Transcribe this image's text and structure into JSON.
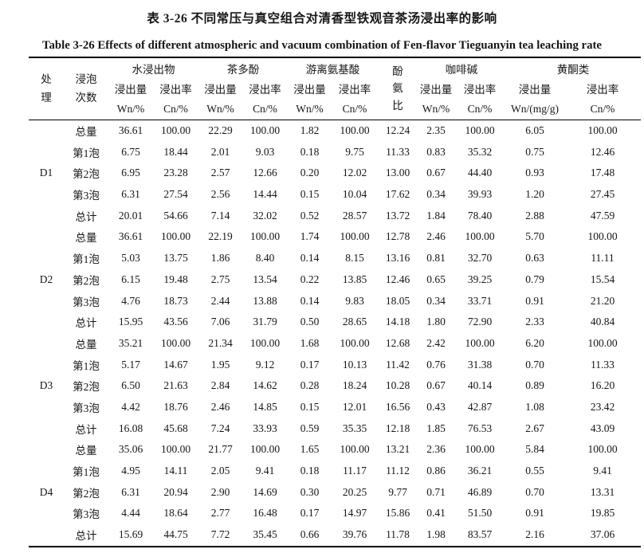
{
  "page": {
    "title_zh": "表 3-26 不同常压与真空组合对清香型铁观音茶汤浸出率的影响",
    "title_en": "Table 3-26 Effects of different atmospheric and vacuum combination of Fen-flavor Tieguanyin tea leaching rate"
  },
  "header": {
    "treatment": "处\n理",
    "steep_count": "浸泡\n次数",
    "phenol_amino_ratio": "酚\n氨\n比",
    "amount_label": "浸出量",
    "rate_label": "浸出率",
    "groups": [
      {
        "name": "水浸出物",
        "units": [
          "Wn/%",
          "Cn/%"
        ]
      },
      {
        "name": "茶多酚",
        "units": [
          "Wn/%",
          "Cn/%"
        ]
      },
      {
        "name": "游离氨基酸",
        "units": [
          "Wn/%",
          "Cn/%"
        ]
      },
      {
        "name": "咖啡碱",
        "units": [
          "Wn/%",
          "Cn/%"
        ]
      },
      {
        "name": "黄酮类",
        "units": [
          "Wn/(mg/g)",
          "Cn/%"
        ]
      }
    ]
  },
  "table": {
    "rows": [
      {
        "treatment": "",
        "label": "总量",
        "values": [
          "36.61",
          "100.00",
          "22.29",
          "100.00",
          "1.82",
          "100.00",
          "12.24",
          "2.35",
          "100.00",
          "6.05",
          "100.00"
        ]
      },
      {
        "treatment": "",
        "label": "第1泡",
        "values": [
          "6.75",
          "18.44",
          "2.01",
          "9.03",
          "0.18",
          "9.75",
          "11.33",
          "0.83",
          "35.32",
          "0.75",
          "12.46"
        ]
      },
      {
        "treatment": "D1",
        "label": "第2泡",
        "values": [
          "6.95",
          "23.28",
          "2.57",
          "12.66",
          "0.20",
          "12.02",
          "13.00",
          "0.67",
          "44.40",
          "0.93",
          "17.48"
        ]
      },
      {
        "treatment": "",
        "label": "第3泡",
        "values": [
          "6.31",
          "27.54",
          "2.56",
          "14.44",
          "0.15",
          "10.04",
          "17.62",
          "0.34",
          "39.93",
          "1.20",
          "27.45"
        ]
      },
      {
        "treatment": "",
        "label": "总计",
        "values": [
          "20.01",
          "54.66",
          "7.14",
          "32.02",
          "0.52",
          "28.57",
          "13.72",
          "1.84",
          "78.40",
          "2.88",
          "47.59"
        ]
      },
      {
        "treatment": "",
        "label": "总量",
        "values": [
          "36.61",
          "100.00",
          "22.19",
          "100.00",
          "1.74",
          "100.00",
          "12.78",
          "2.46",
          "100.00",
          "5.70",
          "100.00"
        ]
      },
      {
        "treatment": "",
        "label": "第1泡",
        "values": [
          "5.03",
          "13.75",
          "1.86",
          "8.40",
          "0.14",
          "8.15",
          "13.16",
          "0.81",
          "32.70",
          "0.63",
          "11.11"
        ]
      },
      {
        "treatment": "D2",
        "label": "第2泡",
        "values": [
          "6.15",
          "19.48",
          "2.75",
          "13.54",
          "0.22",
          "13.85",
          "12.46",
          "0.65",
          "39.25",
          "0.79",
          "15.54"
        ]
      },
      {
        "treatment": "",
        "label": "第3泡",
        "values": [
          "4.76",
          "18.73",
          "2.44",
          "13.88",
          "0.14",
          "9.83",
          "18.05",
          "0.34",
          "33.71",
          "0.91",
          "21.20"
        ]
      },
      {
        "treatment": "",
        "label": "总计",
        "values": [
          "15.95",
          "43.56",
          "7.06",
          "31.79",
          "0.50",
          "28.65",
          "14.18",
          "1.80",
          "72.90",
          "2.33",
          "40.84"
        ]
      },
      {
        "treatment": "",
        "label": "总量",
        "values": [
          "35.21",
          "100.00",
          "21.34",
          "100.00",
          "1.68",
          "100.00",
          "12.68",
          "2.42",
          "100.00",
          "6.20",
          "100.00"
        ]
      },
      {
        "treatment": "",
        "label": "第1泡",
        "values": [
          "5.17",
          "14.67",
          "1.95",
          "9.12",
          "0.17",
          "10.13",
          "11.42",
          "0.76",
          "31.38",
          "0.70",
          "11.33"
        ]
      },
      {
        "treatment": "D3",
        "label": "第2泡",
        "values": [
          "6.50",
          "21.63",
          "2.84",
          "14.62",
          "0.28",
          "18.24",
          "10.28",
          "0.67",
          "40.14",
          "0.89",
          "16.20"
        ]
      },
      {
        "treatment": "",
        "label": "第3泡",
        "values": [
          "4.42",
          "18.76",
          "2.46",
          "14.85",
          "0.15",
          "12.01",
          "16.56",
          "0.43",
          "42.87",
          "1.08",
          "23.42"
        ]
      },
      {
        "treatment": "",
        "label": "总计",
        "values": [
          "16.08",
          "45.68",
          "7.24",
          "33.93",
          "0.59",
          "35.35",
          "12.18",
          "1.85",
          "76.53",
          "2.67",
          "43.09"
        ]
      },
      {
        "treatment": "",
        "label": "总量",
        "values": [
          "35.06",
          "100.00",
          "21.77",
          "100.00",
          "1.65",
          "100.00",
          "13.21",
          "2.36",
          "100.00",
          "5.84",
          "100.00"
        ]
      },
      {
        "treatment": "",
        "label": "第1泡",
        "values": [
          "4.95",
          "14.11",
          "2.05",
          "9.41",
          "0.18",
          "11.17",
          "11.12",
          "0.86",
          "36.21",
          "0.55",
          "9.41"
        ]
      },
      {
        "treatment": "D4",
        "label": "第2泡",
        "values": [
          "6.31",
          "20.94",
          "2.90",
          "14.69",
          "0.30",
          "20.25",
          "9.77",
          "0.71",
          "46.89",
          "0.70",
          "13.31"
        ]
      },
      {
        "treatment": "",
        "label": "第3泡",
        "values": [
          "4.44",
          "18.64",
          "2.77",
          "16.48",
          "0.17",
          "14.97",
          "15.86",
          "0.41",
          "51.50",
          "0.91",
          "19.85"
        ]
      },
      {
        "treatment": "",
        "label": "总计",
        "values": [
          "15.69",
          "44.75",
          "7.72",
          "35.45",
          "0.66",
          "39.76",
          "11.78",
          "1.98",
          "83.57",
          "2.16",
          "37.06"
        ]
      }
    ]
  }
}
